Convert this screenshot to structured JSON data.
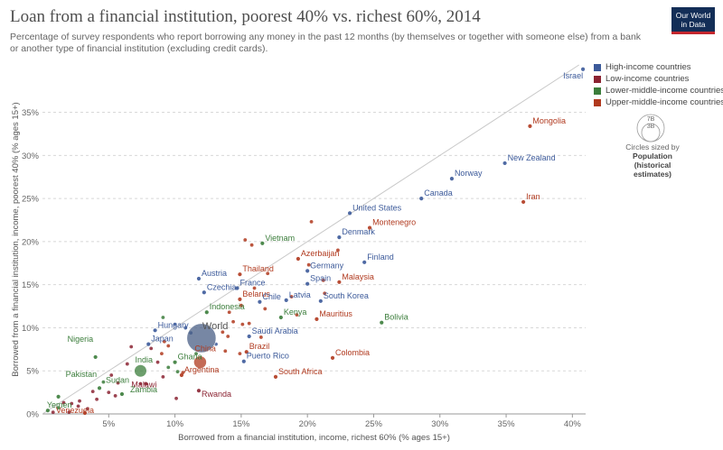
{
  "title": "Loan from a financial institution, poorest 40% vs. richest 60%, 2014",
  "subtitle": "Percentage of survey respondents who report borrowing any money in the past 12 months (by themselves or together with someone else) from a bank or another type of financial institution (excluding credit cards).",
  "logo": {
    "line1": "Our World",
    "line2": "in Data"
  },
  "legend": {
    "items": [
      {
        "label": "High-income countries",
        "color": "#3c5a9a"
      },
      {
        "label": "Low-income countries",
        "color": "#8b2332"
      },
      {
        "label": "Lower-middle-income countries",
        "color": "#3b7d3b"
      },
      {
        "label": "Upper-middle-income countries",
        "color": "#b0391e"
      }
    ],
    "size_big": "7B",
    "size_small": "3B",
    "size_caption_1": "Circles sized by",
    "size_caption_2": "Population (historical estimates)"
  },
  "chart_data": {
    "type": "scatter",
    "xlabel": "Borrowed from a financial institution, income, richest 60% (% ages 15+)",
    "ylabel": "Borrowed from a financial institution, income, poorest 40% (% ages 15+)",
    "xlim": [
      0,
      41
    ],
    "ylim": [
      0,
      40.5
    ],
    "x_ticks": [
      5,
      10,
      15,
      20,
      25,
      30,
      35,
      40
    ],
    "y_ticks": [
      0,
      5,
      10,
      15,
      20,
      25,
      30,
      35
    ],
    "x_tick_labels": [
      "5%",
      "10%",
      "15%",
      "20%",
      "25%",
      "30%",
      "35%",
      "40%"
    ],
    "y_tick_labels": [
      "0%",
      "5%",
      "10%",
      "15%",
      "20%",
      "25%",
      "30%",
      "35%"
    ],
    "diagonal_reference_line": true,
    "grid": "horizontal dotted",
    "legend_position": "right",
    "points": [
      {
        "label": "Israel",
        "x": 40.8,
        "y": 40.0,
        "group": "high"
      },
      {
        "label": "Mongolia",
        "x": 36.8,
        "y": 33.4,
        "group": "upper"
      },
      {
        "label": "New Zealand",
        "x": 34.9,
        "y": 29.1,
        "group": "high"
      },
      {
        "label": "Norway",
        "x": 30.9,
        "y": 27.3,
        "group": "high"
      },
      {
        "label": "Canada",
        "x": 28.6,
        "y": 25.0,
        "group": "high"
      },
      {
        "label": "Iran",
        "x": 36.3,
        "y": 24.6,
        "group": "upper"
      },
      {
        "label": "United States",
        "x": 23.2,
        "y": 23.3,
        "group": "high"
      },
      {
        "label": "Montenegro",
        "x": 24.7,
        "y": 21.6,
        "group": "upper"
      },
      {
        "label": "Denmark",
        "x": 22.4,
        "y": 20.5,
        "group": "high"
      },
      {
        "label": "Vietnam",
        "x": 16.6,
        "y": 19.8,
        "group": "lower"
      },
      {
        "label": "Azerbaijan",
        "x": 19.3,
        "y": 18.0,
        "group": "upper"
      },
      {
        "label": "Finland",
        "x": 24.3,
        "y": 17.6,
        "group": "high"
      },
      {
        "label": "Thailand",
        "x": 14.9,
        "y": 16.2,
        "group": "upper"
      },
      {
        "label": "Germany",
        "x": 20.0,
        "y": 16.6,
        "group": "high"
      },
      {
        "label": "Austria",
        "x": 11.8,
        "y": 15.7,
        "group": "high"
      },
      {
        "label": "Spain",
        "x": 20.0,
        "y": 15.1,
        "group": "high"
      },
      {
        "label": "Malaysia",
        "x": 22.4,
        "y": 15.3,
        "group": "upper"
      },
      {
        "label": "France",
        "x": 14.7,
        "y": 14.6,
        "group": "high"
      },
      {
        "label": "Czechia",
        "x": 12.2,
        "y": 14.1,
        "group": "high"
      },
      {
        "label": "Belarus",
        "x": 14.9,
        "y": 13.3,
        "group": "upper"
      },
      {
        "label": "Chile",
        "x": 16.4,
        "y": 13.0,
        "group": "high"
      },
      {
        "label": "Latvia",
        "x": 18.4,
        "y": 13.2,
        "group": "high"
      },
      {
        "label": "South Korea",
        "x": 21.0,
        "y": 13.1,
        "group": "high"
      },
      {
        "label": "Indonesia",
        "x": 12.4,
        "y": 11.8,
        "group": "lower"
      },
      {
        "label": "Kenya",
        "x": 18.0,
        "y": 11.2,
        "group": "lower"
      },
      {
        "label": "Mauritius",
        "x": 20.7,
        "y": 11.0,
        "group": "upper"
      },
      {
        "label": "Bolivia",
        "x": 25.6,
        "y": 10.6,
        "group": "lower"
      },
      {
        "label": "Hungary",
        "x": 8.5,
        "y": 9.7,
        "group": "high"
      },
      {
        "label": "World",
        "x": 12.0,
        "y": 8.8,
        "group": "world",
        "pop": 7.2
      },
      {
        "label": "Saudi Arabia",
        "x": 15.6,
        "y": 9.0,
        "group": "high"
      },
      {
        "label": "Japan",
        "x": 8.0,
        "y": 8.1,
        "group": "high"
      },
      {
        "label": "Brazil",
        "x": 15.4,
        "y": 7.2,
        "group": "upper"
      },
      {
        "label": "Nigeria",
        "x": 4.0,
        "y": 6.6,
        "group": "lower"
      },
      {
        "label": "China",
        "x": 11.9,
        "y": 6.0,
        "group": "upper",
        "pop": 1.37
      },
      {
        "label": "Ghana",
        "x": 10.0,
        "y": 6.0,
        "group": "lower"
      },
      {
        "label": "Puerto Rico",
        "x": 15.2,
        "y": 6.1,
        "group": "high"
      },
      {
        "label": "Colombia",
        "x": 21.9,
        "y": 6.5,
        "group": "upper"
      },
      {
        "label": "India",
        "x": 7.4,
        "y": 5.0,
        "group": "lower",
        "pop": 1.29
      },
      {
        "label": "Argentina",
        "x": 10.5,
        "y": 4.5,
        "group": "upper"
      },
      {
        "label": "South Africa",
        "x": 17.6,
        "y": 4.3,
        "group": "upper"
      },
      {
        "label": "Malawi",
        "x": 7.8,
        "y": 3.5,
        "group": "low"
      },
      {
        "label": "Sudan",
        "x": 4.3,
        "y": 3.0,
        "group": "lower"
      },
      {
        "label": "Rwanda",
        "x": 11.8,
        "y": 2.7,
        "group": "low"
      },
      {
        "label": "Zambia",
        "x": 6.0,
        "y": 2.3,
        "group": "lower"
      },
      {
        "label": "Pakistan",
        "x": 1.2,
        "y": 2.0,
        "group": "lower"
      },
      {
        "label": "Yemen",
        "x": 0.4,
        "y": 0.4,
        "group": "lower"
      },
      {
        "label": "Venezuela",
        "x": 3.2,
        "y": 0.1,
        "group": "upper"
      }
    ],
    "unlabeled_points": [
      {
        "x": 20.3,
        "y": 22.3,
        "group": "upper"
      },
      {
        "x": 15.3,
        "y": 20.2,
        "group": "upper"
      },
      {
        "x": 15.8,
        "y": 19.6,
        "group": "upper"
      },
      {
        "x": 22.3,
        "y": 19.0,
        "group": "upper"
      },
      {
        "x": 20.1,
        "y": 17.3,
        "group": "upper"
      },
      {
        "x": 17.0,
        "y": 16.3,
        "group": "upper"
      },
      {
        "x": 21.2,
        "y": 15.5,
        "group": "upper"
      },
      {
        "x": 16.0,
        "y": 14.6,
        "group": "upper"
      },
      {
        "x": 18.8,
        "y": 13.6,
        "group": "upper"
      },
      {
        "x": 21.3,
        "y": 14.0,
        "group": "upper"
      },
      {
        "x": 15.0,
        "y": 12.6,
        "group": "upper"
      },
      {
        "x": 14.1,
        "y": 11.8,
        "group": "upper"
      },
      {
        "x": 16.8,
        "y": 12.2,
        "group": "upper"
      },
      {
        "x": 19.2,
        "y": 11.5,
        "group": "upper"
      },
      {
        "x": 14.4,
        "y": 10.7,
        "group": "upper"
      },
      {
        "x": 15.1,
        "y": 10.4,
        "group": "upper"
      },
      {
        "x": 15.6,
        "y": 10.5,
        "group": "upper"
      },
      {
        "x": 9.1,
        "y": 11.2,
        "group": "lower"
      },
      {
        "x": 10.0,
        "y": 10.4,
        "group": "high"
      },
      {
        "x": 10.8,
        "y": 10.0,
        "group": "high"
      },
      {
        "x": 13.6,
        "y": 9.5,
        "group": "upper"
      },
      {
        "x": 14.0,
        "y": 9.0,
        "group": "upper"
      },
      {
        "x": 16.5,
        "y": 8.9,
        "group": "upper"
      },
      {
        "x": 13.1,
        "y": 8.1,
        "group": "high"
      },
      {
        "x": 9.2,
        "y": 8.4,
        "group": "upper"
      },
      {
        "x": 9.5,
        "y": 7.9,
        "group": "upper"
      },
      {
        "x": 8.2,
        "y": 7.6,
        "group": "low"
      },
      {
        "x": 6.7,
        "y": 7.8,
        "group": "low"
      },
      {
        "x": 9.0,
        "y": 7.0,
        "group": "upper"
      },
      {
        "x": 11.6,
        "y": 7.0,
        "group": "lower"
      },
      {
        "x": 13.8,
        "y": 7.3,
        "group": "upper"
      },
      {
        "x": 14.9,
        "y": 7.0,
        "group": "upper"
      },
      {
        "x": 6.4,
        "y": 5.8,
        "group": "low"
      },
      {
        "x": 8.7,
        "y": 6.0,
        "group": "low"
      },
      {
        "x": 9.5,
        "y": 5.4,
        "group": "lower"
      },
      {
        "x": 10.2,
        "y": 4.9,
        "group": "lower"
      },
      {
        "x": 10.6,
        "y": 4.8,
        "group": "upper"
      },
      {
        "x": 9.1,
        "y": 4.3,
        "group": "low"
      },
      {
        "x": 5.2,
        "y": 4.5,
        "group": "low"
      },
      {
        "x": 4.6,
        "y": 3.7,
        "group": "lower"
      },
      {
        "x": 5.7,
        "y": 3.6,
        "group": "low"
      },
      {
        "x": 7.4,
        "y": 3.5,
        "group": "low"
      },
      {
        "x": 3.8,
        "y": 2.6,
        "group": "low"
      },
      {
        "x": 5.0,
        "y": 2.5,
        "group": "low"
      },
      {
        "x": 5.5,
        "y": 2.1,
        "group": "low"
      },
      {
        "x": 4.1,
        "y": 1.7,
        "group": "low"
      },
      {
        "x": 2.8,
        "y": 1.5,
        "group": "low"
      },
      {
        "x": 2.2,
        "y": 1.2,
        "group": "low"
      },
      {
        "x": 1.6,
        "y": 1.3,
        "group": "low"
      },
      {
        "x": 2.7,
        "y": 0.9,
        "group": "low"
      },
      {
        "x": 3.4,
        "y": 0.6,
        "group": "low"
      },
      {
        "x": 1.2,
        "y": 0.7,
        "group": "lower"
      },
      {
        "x": 10.1,
        "y": 1.8,
        "group": "low"
      },
      {
        "x": 0.8,
        "y": 0.2,
        "group": "low"
      },
      {
        "x": 2.0,
        "y": 0.2,
        "group": "low"
      },
      {
        "x": 11.2,
        "y": 9.4,
        "group": "high"
      }
    ],
    "group_colors": {
      "high": "#3c5a9a",
      "low": "#8b2332",
      "lower": "#3b7d3b",
      "upper": "#b0391e",
      "world": "#4a5f86"
    }
  }
}
